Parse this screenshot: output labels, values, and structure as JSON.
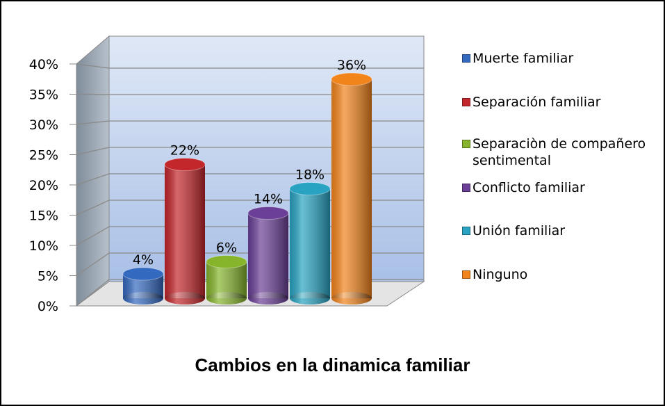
{
  "chart_data": {
    "type": "bar",
    "title": "Cambios en la dinamica familiar",
    "categories": [
      "Muerte familiar",
      "Separación familiar",
      "Separaciòn de compañero sentimental",
      "Conflicto familiar",
      "Unión familiar",
      "Ninguno"
    ],
    "values": [
      4,
      22,
      6,
      14,
      18,
      36
    ],
    "value_labels": [
      "4%",
      "22%",
      "6%",
      "14%",
      "18%",
      "36%"
    ],
    "colors": [
      "#3469c0",
      "#c3262b",
      "#86b52c",
      "#6b3f97",
      "#28a4c2",
      "#f2841c"
    ],
    "ylim": [
      0,
      40
    ],
    "yticks": [
      {
        "value": 0,
        "label": "0%"
      },
      {
        "value": 5,
        "label": "5%"
      },
      {
        "value": 10,
        "label": "10%"
      },
      {
        "value": 15,
        "label": "15%"
      },
      {
        "value": 20,
        "label": "20%"
      },
      {
        "value": 25,
        "label": "25%"
      },
      {
        "value": 30,
        "label": "30%"
      },
      {
        "value": 35,
        "label": "35%"
      },
      {
        "value": 40,
        "label": "40%"
      }
    ],
    "grid": true,
    "legend": "right"
  }
}
